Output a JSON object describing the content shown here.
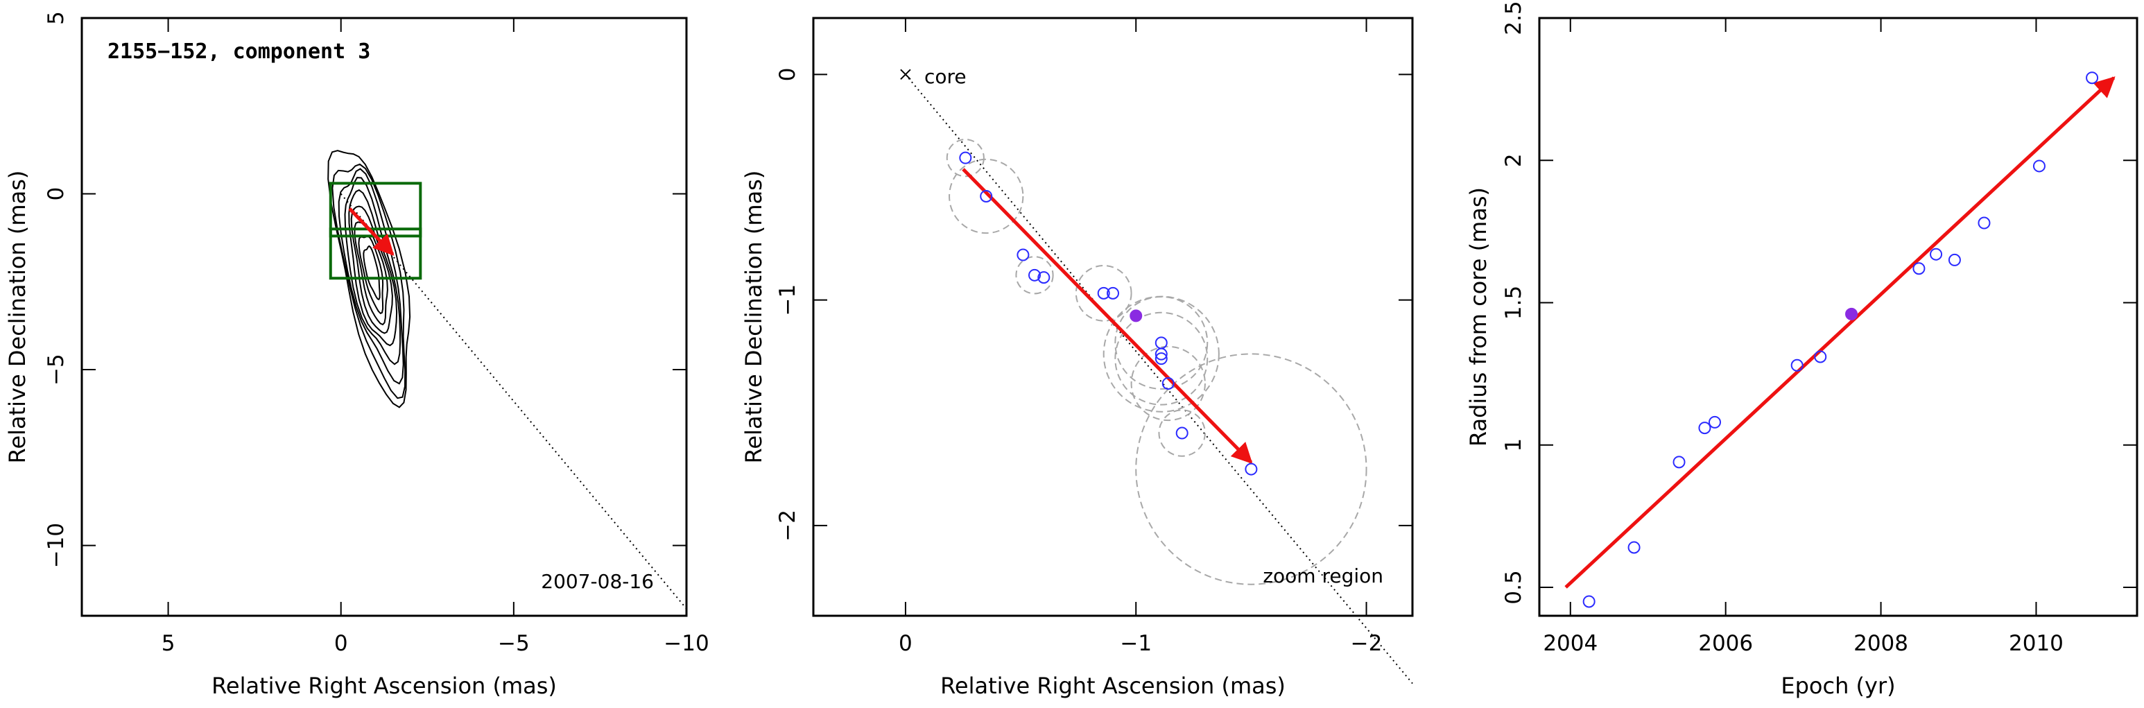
{
  "chart_data": [
    {
      "type": "contour",
      "title": "2155−152, component 3",
      "date_label": "2007-08-16",
      "xlabel": "Relative Right Ascension (mas)",
      "ylabel": "Relative Declination (mas)",
      "xlim": [
        7.5,
        -10
      ],
      "ylim": [
        -12,
        5
      ],
      "xticks": [
        5,
        0,
        -5,
        -10
      ],
      "yticks": [
        5,
        0,
        -5,
        -10
      ],
      "xtick_labels": [
        "5",
        "0",
        "−5",
        "−10"
      ],
      "ytick_labels": [
        "5",
        "0",
        "−5",
        "−10"
      ],
      "contour_levels": 9,
      "zoom_boxes": [
        {
          "x": [
            0.3,
            -2.3
          ],
          "y": [
            0.3,
            -1.2
          ]
        },
        {
          "x": [
            0.3,
            -2.3
          ],
          "y": [
            -1.0,
            -2.4
          ]
        }
      ],
      "arrow": {
        "from": [
          -0.25,
          -0.42
        ],
        "to": [
          -1.5,
          -1.72
        ]
      },
      "jet_line": {
        "from": [
          0,
          0
        ],
        "to": [
          -10,
          -11.8
        ]
      },
      "colors": {
        "contour": "#000000",
        "box": "#0a6a0a",
        "arrow": "#ee1111",
        "line": "#000000"
      }
    },
    {
      "type": "scatter",
      "xlabel": "Relative Right Ascension (mas)",
      "ylabel": "Relative Declination (mas)",
      "xlim": [
        0.4,
        -2.2
      ],
      "ylim": [
        -2.4,
        0.25
      ],
      "xticks": [
        0,
        -1,
        -2
      ],
      "yticks": [
        0,
        -1,
        -2
      ],
      "xtick_labels": [
        "0",
        "−1",
        "−2"
      ],
      "ytick_labels": [
        "0",
        "−1",
        "−2"
      ],
      "core_label": "core",
      "region_label": "zoom region",
      "points": [
        {
          "x": -0.26,
          "y": -0.37,
          "r": 0.08,
          "filled": false
        },
        {
          "x": -0.35,
          "y": -0.54,
          "r": 0.16,
          "filled": false
        },
        {
          "x": -0.51,
          "y": -0.8,
          "r": 0.0,
          "filled": false
        },
        {
          "x": -0.56,
          "y": -0.89,
          "r": 0.08,
          "filled": false
        },
        {
          "x": -0.6,
          "y": -0.9,
          "r": 0.0,
          "filled": false
        },
        {
          "x": -0.86,
          "y": -0.97,
          "r": 0.12,
          "filled": false
        },
        {
          "x": -0.9,
          "y": -0.97,
          "r": 0.0,
          "filled": false
        },
        {
          "x": -1.0,
          "y": -1.07,
          "r": 0.0,
          "filled": true
        },
        {
          "x": -1.11,
          "y": -1.19,
          "r": 0.2,
          "filled": false
        },
        {
          "x": -1.11,
          "y": -1.24,
          "r": 0.25,
          "filled": false
        },
        {
          "x": -1.11,
          "y": -1.26,
          "r": 0.2,
          "filled": false
        },
        {
          "x": -1.14,
          "y": -1.37,
          "r": 0.16,
          "filled": false
        },
        {
          "x": -1.2,
          "y": -1.59,
          "r": 0.1,
          "filled": false
        },
        {
          "x": -1.5,
          "y": -1.75,
          "r": 0.5,
          "filled": false
        }
      ],
      "arrow": {
        "from": [
          -0.25,
          -0.42
        ],
        "to": [
          -1.5,
          -1.72
        ]
      },
      "jet_line": {
        "from": [
          0,
          0
        ],
        "to": [
          -2.2,
          -2.7
        ]
      },
      "colors": {
        "point": "#2b2bff",
        "filled_point": "#8a2be2",
        "circle": "#a8a8a8",
        "arrow": "#ee1111",
        "line": "#000000"
      }
    },
    {
      "type": "scatter",
      "xlabel": "Epoch (yr)",
      "ylabel": "Radius from core (mas)",
      "xlim": [
        2003.6,
        2011.3
      ],
      "ylim": [
        0.4,
        2.5
      ],
      "xticks": [
        2004,
        2006,
        2008,
        2010
      ],
      "yticks": [
        0.5,
        1,
        1.5,
        2,
        2.5
      ],
      "xtick_labels": [
        "2004",
        "2006",
        "2008",
        "2010"
      ],
      "ytick_labels": [
        "0.5",
        "1",
        "1.5",
        "2",
        "2.5"
      ],
      "points": [
        {
          "x": 2004.24,
          "y": 0.45,
          "filled": false
        },
        {
          "x": 2004.82,
          "y": 0.64,
          "filled": false
        },
        {
          "x": 2005.4,
          "y": 0.94,
          "filled": false
        },
        {
          "x": 2005.73,
          "y": 1.06,
          "filled": false
        },
        {
          "x": 2005.86,
          "y": 1.08,
          "filled": false
        },
        {
          "x": 2006.92,
          "y": 1.28,
          "filled": false
        },
        {
          "x": 2007.22,
          "y": 1.31,
          "filled": false
        },
        {
          "x": 2007.62,
          "y": 1.46,
          "filled": true
        },
        {
          "x": 2008.49,
          "y": 1.62,
          "filled": false
        },
        {
          "x": 2008.71,
          "y": 1.67,
          "filled": false
        },
        {
          "x": 2008.95,
          "y": 1.65,
          "filled": false
        },
        {
          "x": 2009.33,
          "y": 1.78,
          "filled": false
        },
        {
          "x": 2010.04,
          "y": 1.98,
          "filled": false
        },
        {
          "x": 2010.72,
          "y": 2.29,
          "filled": false
        }
      ],
      "fit_line": {
        "from": [
          2003.94,
          0.5
        ],
        "to": [
          2011.0,
          2.29
        ]
      },
      "colors": {
        "point": "#2b2bff",
        "filled_point": "#8a2be2",
        "fit": "#ee1111"
      }
    }
  ]
}
